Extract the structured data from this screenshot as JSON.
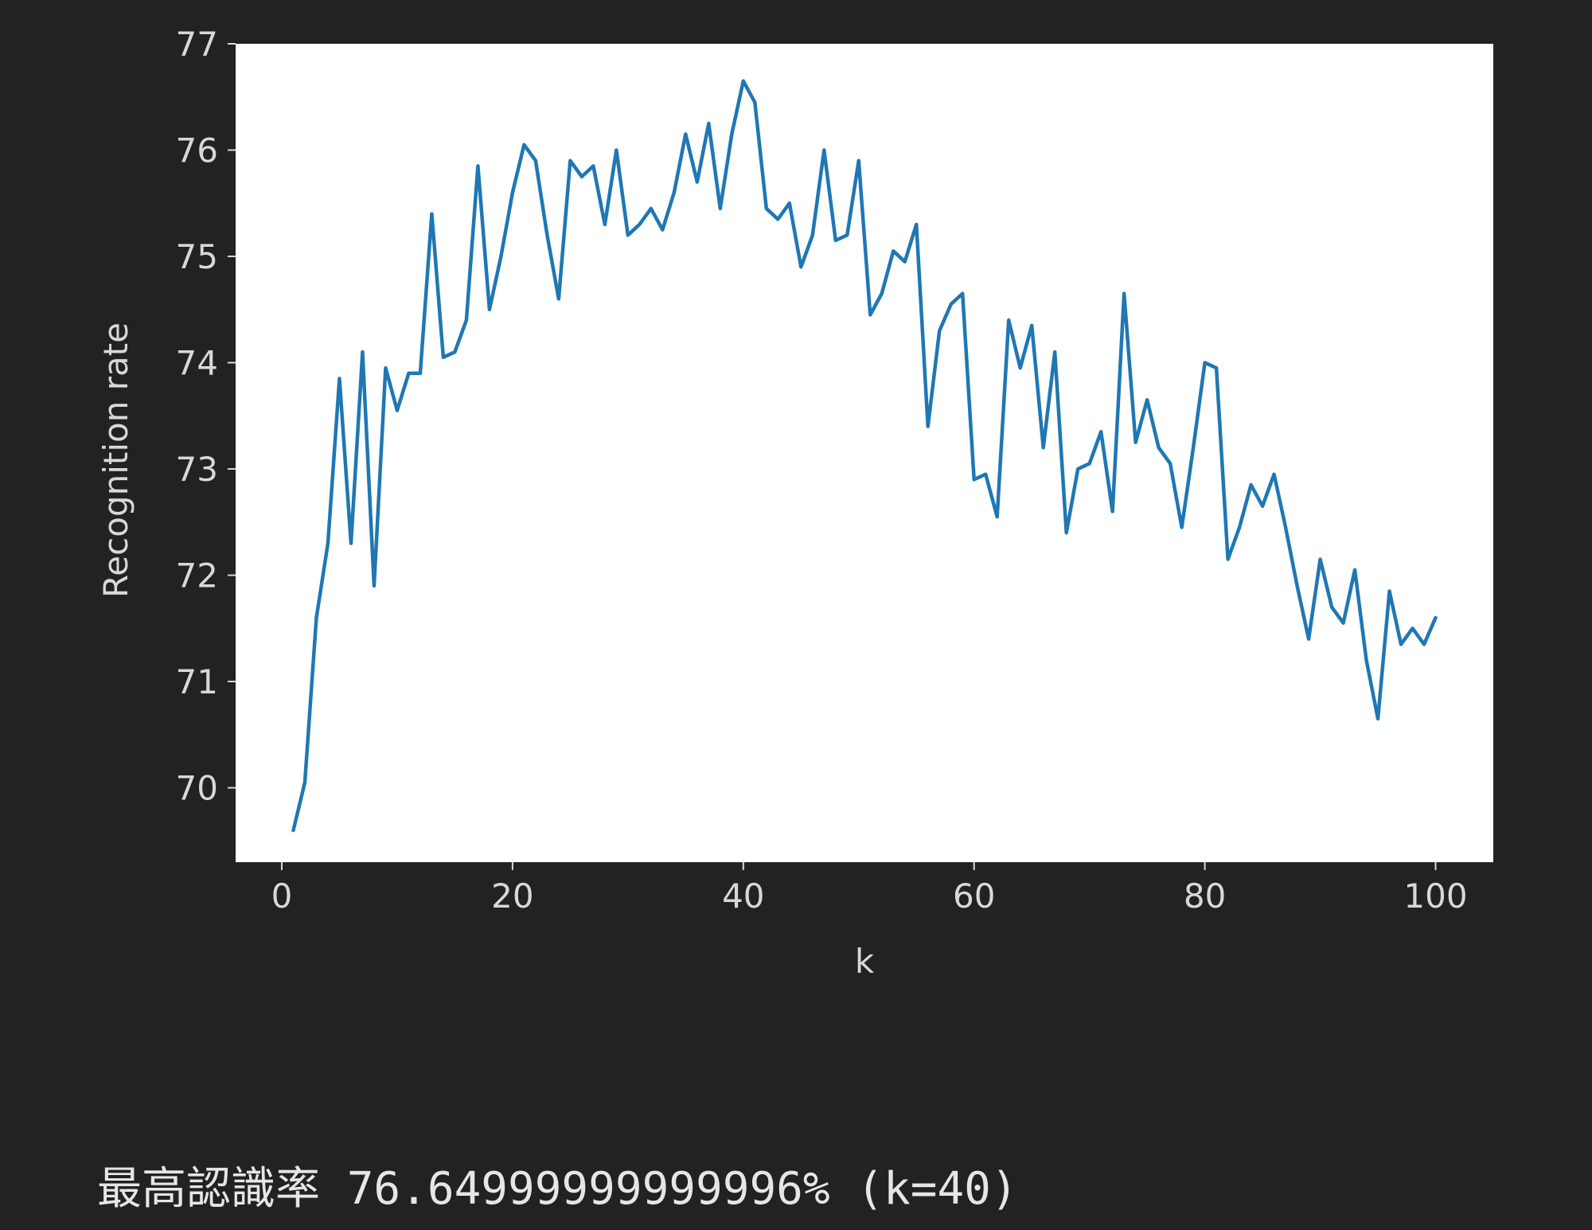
{
  "chart_data": {
    "type": "line",
    "title": "",
    "xlabel": "k",
    "ylabel": "Recognition rate",
    "xlim": [
      -4,
      105
    ],
    "ylim": [
      69.3,
      77.0
    ],
    "xticks": [
      0,
      20,
      40,
      60,
      80,
      100
    ],
    "yticks": [
      70,
      71,
      72,
      73,
      74,
      75,
      76,
      77
    ],
    "grid": false,
    "line_color": "#1f77b4",
    "plot_background": "#ffffff",
    "figure_background": "#222222",
    "x": [
      1,
      2,
      3,
      4,
      5,
      6,
      7,
      8,
      9,
      10,
      11,
      12,
      13,
      14,
      15,
      16,
      17,
      18,
      19,
      20,
      21,
      22,
      23,
      24,
      25,
      26,
      27,
      28,
      29,
      30,
      31,
      32,
      33,
      34,
      35,
      36,
      37,
      38,
      39,
      40,
      41,
      42,
      43,
      44,
      45,
      46,
      47,
      48,
      49,
      50,
      51,
      52,
      53,
      54,
      55,
      56,
      57,
      58,
      59,
      60,
      61,
      62,
      63,
      64,
      65,
      66,
      67,
      68,
      69,
      70,
      71,
      72,
      73,
      74,
      75,
      76,
      77,
      78,
      79,
      80,
      81,
      82,
      83,
      84,
      85,
      86,
      87,
      88,
      89,
      90,
      91,
      92,
      93,
      94,
      95,
      96,
      97,
      98,
      99,
      100
    ],
    "y": [
      69.6,
      70.05,
      71.6,
      72.3,
      73.85,
      72.3,
      74.1,
      71.9,
      73.95,
      73.55,
      73.9,
      73.9,
      75.4,
      74.05,
      74.1,
      74.4,
      75.85,
      74.5,
      75.0,
      75.6,
      76.05,
      75.9,
      75.2,
      74.6,
      75.9,
      75.75,
      75.85,
      75.3,
      76.0,
      75.2,
      75.3,
      75.45,
      75.25,
      75.6,
      76.15,
      75.7,
      76.25,
      75.45,
      76.15,
      76.65,
      76.45,
      75.45,
      75.35,
      75.5,
      74.9,
      75.2,
      76.0,
      75.15,
      75.2,
      75.9,
      74.45,
      74.65,
      75.05,
      74.95,
      75.3,
      73.4,
      74.3,
      74.55,
      74.65,
      72.9,
      72.95,
      72.55,
      74.4,
      73.95,
      74.35,
      73.2,
      74.1,
      72.4,
      73.0,
      73.05,
      73.35,
      72.6,
      74.65,
      73.25,
      73.65,
      73.2,
      73.05,
      72.45,
      73.2,
      74.0,
      73.95,
      72.15,
      72.45,
      72.85,
      72.65,
      72.95,
      72.45,
      71.9,
      71.4,
      72.15,
      71.7,
      71.55,
      72.05,
      71.2,
      70.65,
      71.85,
      71.35,
      71.5,
      71.35,
      71.6
    ]
  },
  "output": {
    "text": "最高認識率 76.64999999999996% (k=40)"
  }
}
